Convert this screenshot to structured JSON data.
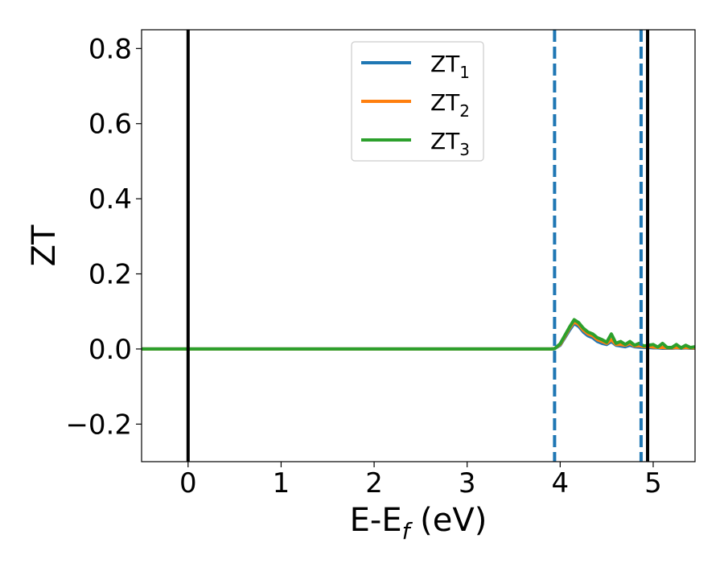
{
  "chart_data": {
    "type": "line",
    "title": "",
    "xlabel": {
      "main": "E-E",
      "sub": "f",
      "unit": " (eV)"
    },
    "ylabel": "ZT",
    "xlim": [
      -0.5,
      5.45
    ],
    "ylim": [
      -0.3,
      0.85
    ],
    "xticks": [
      0,
      1,
      2,
      3,
      4,
      5
    ],
    "xtick_labels": [
      "0",
      "1",
      "2",
      "3",
      "4",
      "5"
    ],
    "yticks": [
      -0.2,
      0.0,
      0.2,
      0.4,
      0.6,
      0.8
    ],
    "ytick_labels": [
      "−0.2",
      "0.0",
      "0.2",
      "0.4",
      "0.6",
      "0.8"
    ],
    "grid": false,
    "legend_position": "upper-center",
    "vlines": [
      {
        "x": 0.0,
        "style": "solid",
        "color": "#000000"
      },
      {
        "x": 4.94,
        "style": "solid",
        "color": "#000000"
      },
      {
        "x": 3.94,
        "style": "dashed",
        "color": "#1f77b4"
      },
      {
        "x": 4.87,
        "style": "dashed",
        "color": "#1f77b4"
      }
    ],
    "series": [
      {
        "name": "ZT",
        "sub": "1",
        "color": "#1f77b4",
        "x": [
          -0.5,
          3.9,
          3.94,
          4.0,
          4.05,
          4.1,
          4.15,
          4.2,
          4.25,
          4.3,
          4.35,
          4.4,
          4.45,
          4.5,
          4.55,
          4.6,
          4.65,
          4.7,
          4.75,
          4.8,
          4.85,
          4.9,
          4.95,
          5.0,
          5.05,
          5.1,
          5.15,
          5.2,
          5.25,
          5.3,
          5.35,
          5.4,
          5.45
        ],
        "y": [
          0.0,
          0.0,
          0.001,
          0.01,
          0.03,
          0.05,
          0.068,
          0.06,
          0.045,
          0.035,
          0.03,
          0.02,
          0.015,
          0.012,
          0.02,
          0.01,
          0.008,
          0.006,
          0.01,
          0.006,
          0.005,
          0.004,
          0.004,
          0.003,
          0.003,
          0.002,
          0.002,
          0.002,
          0.003,
          0.002,
          0.003,
          0.002,
          0.002
        ]
      },
      {
        "name": "ZT",
        "sub": "2",
        "color": "#ff7f0e",
        "x": [
          -0.5,
          3.9,
          3.94,
          4.0,
          4.05,
          4.1,
          4.15,
          4.2,
          4.25,
          4.3,
          4.35,
          4.4,
          4.45,
          4.5,
          4.55,
          4.6,
          4.65,
          4.7,
          4.75,
          4.8,
          4.85,
          4.9,
          4.95,
          5.0,
          5.05,
          5.1,
          5.15,
          5.2,
          5.25,
          5.3,
          5.35,
          5.4,
          5.45
        ],
        "y": [
          0.0,
          0.0,
          0.001,
          0.012,
          0.033,
          0.055,
          0.072,
          0.065,
          0.05,
          0.04,
          0.035,
          0.025,
          0.02,
          0.015,
          0.025,
          0.012,
          0.012,
          0.01,
          0.015,
          0.008,
          0.009,
          0.006,
          0.007,
          0.005,
          0.004,
          0.004,
          0.003,
          0.003,
          0.004,
          0.003,
          0.004,
          0.003,
          0.003
        ]
      },
      {
        "name": "ZT",
        "sub": "3",
        "color": "#2ca02c",
        "x": [
          -0.5,
          3.9,
          3.94,
          4.0,
          4.05,
          4.1,
          4.15,
          4.2,
          4.25,
          4.3,
          4.35,
          4.4,
          4.45,
          4.5,
          4.55,
          4.6,
          4.65,
          4.7,
          4.75,
          4.8,
          4.85,
          4.9,
          4.95,
          5.0,
          5.05,
          5.1,
          5.15,
          5.2,
          5.25,
          5.3,
          5.35,
          5.4,
          5.45
        ],
        "y": [
          0.0,
          0.0,
          0.001,
          0.014,
          0.036,
          0.058,
          0.078,
          0.07,
          0.055,
          0.045,
          0.04,
          0.03,
          0.025,
          0.018,
          0.04,
          0.015,
          0.02,
          0.012,
          0.02,
          0.01,
          0.015,
          0.008,
          0.01,
          0.012,
          0.005,
          0.015,
          0.004,
          0.004,
          0.012,
          0.003,
          0.01,
          0.004,
          0.006
        ]
      }
    ]
  }
}
